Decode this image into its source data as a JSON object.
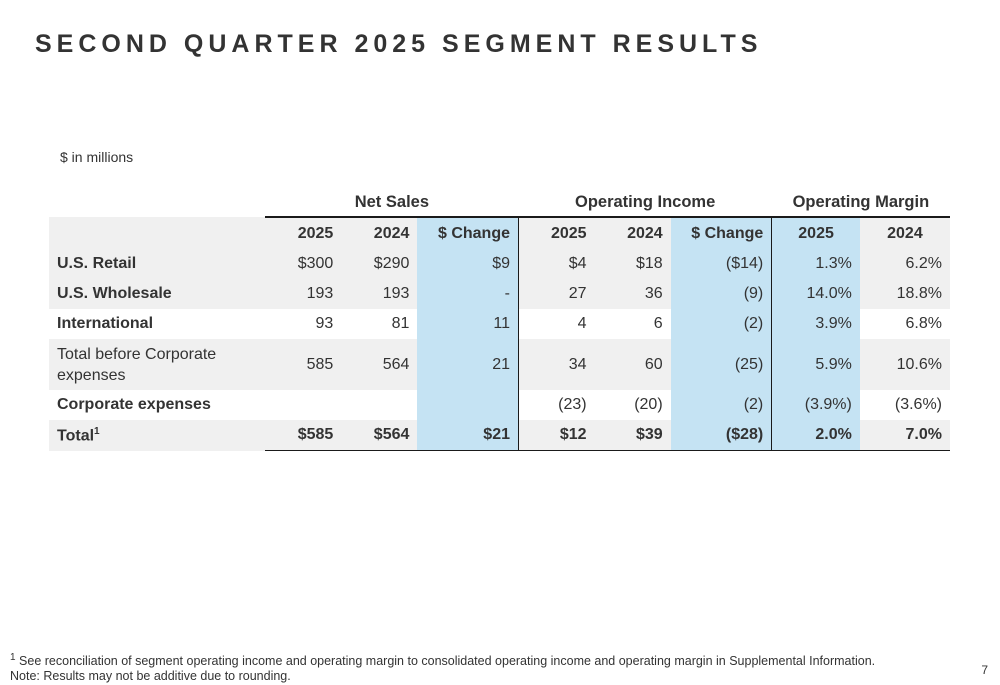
{
  "title": "SECOND QUARTER 2025 SEGMENT RESULTS",
  "units": "$ in millions",
  "table": {
    "groups": [
      "Net Sales",
      "Operating Income",
      "Operating Margin"
    ],
    "columns": [
      "2025",
      "2024",
      "$ Change",
      "2025",
      "2024",
      "$ Change",
      "2025",
      "2024"
    ],
    "rows": [
      {
        "label": "U.S. Retail",
        "values": [
          "$300",
          "$290",
          "$9",
          "$4",
          "$18",
          "($14)",
          "1.3%",
          "6.2%"
        ]
      },
      {
        "label": "U.S. Wholesale",
        "values": [
          "193",
          "193",
          "-",
          "27",
          "36",
          "(9)",
          "14.0%",
          "18.8%"
        ]
      },
      {
        "label": "International",
        "values": [
          "93",
          "81",
          "11",
          "4",
          "6",
          "(2)",
          "3.9%",
          "6.8%"
        ]
      },
      {
        "label": "Total before Corporate expenses",
        "values": [
          "585",
          "564",
          "21",
          "34",
          "60",
          "(25)",
          "5.9%",
          "10.6%"
        ]
      },
      {
        "label": "Corporate expenses",
        "values": [
          "",
          "",
          "",
          "(23)",
          "(20)",
          "(2)",
          "(3.9%)",
          "(3.6%)"
        ]
      },
      {
        "label": "Total",
        "label_sup": "1",
        "values": [
          "$585",
          "$564",
          "$21",
          "$12",
          "$39",
          "($28)",
          "2.0%",
          "7.0%"
        ]
      }
    ]
  },
  "footnotes": {
    "note1_marker": "1",
    "note1": "See reconciliation of segment operating income and operating margin to consolidated operating income and operating margin in Supplemental Information.",
    "note2": "Note: Results may not be additive due to rounding."
  },
  "page_number": "7",
  "colors": {
    "highlight": "#c5e3f3",
    "row_shade": "#f0f0f0",
    "text": "#333333"
  }
}
